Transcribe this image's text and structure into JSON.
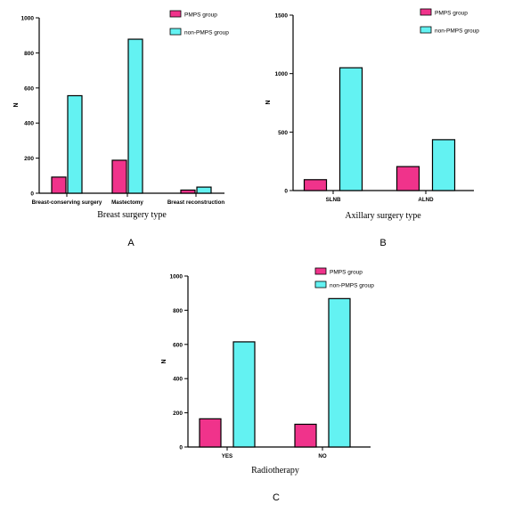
{
  "legend": {
    "pmps_label": "PMPS group",
    "non_pmps_label": "non-PMPS group"
  },
  "colors": {
    "pmps": "#F0338B",
    "non_pmps": "#63F2F2"
  },
  "panel_labels": [
    "A",
    "B",
    "C"
  ],
  "chart_data": [
    {
      "type": "bar",
      "panel": "A",
      "categories": [
        "Breast-conserving surgery",
        "Mastectomy",
        "Breast reconstruction"
      ],
      "series": [
        {
          "name": "PMPS group",
          "values": [
            92,
            188,
            18
          ]
        },
        {
          "name": "non-PMPS group",
          "values": [
            556,
            878,
            35
          ]
        }
      ],
      "xlabel": "Breast surgery type",
      "ylabel": "N",
      "ylim": [
        0,
        1000
      ],
      "yticks": [
        0,
        200,
        400,
        600,
        800,
        1000
      ],
      "grid": false,
      "legend_position": "top-right"
    },
    {
      "type": "bar",
      "panel": "B",
      "categories": [
        "SLNB",
        "ALND"
      ],
      "series": [
        {
          "name": "PMPS group",
          "values": [
            93,
            205
          ]
        },
        {
          "name": "non-PMPS group",
          "values": [
            1050,
            435
          ]
        }
      ],
      "xlabel": "Axillary surgery type",
      "ylabel": "N",
      "ylim": [
        0,
        1500
      ],
      "yticks": [
        0,
        500,
        1000,
        1500
      ],
      "grid": false,
      "legend_position": "top-right"
    },
    {
      "type": "bar",
      "panel": "C",
      "categories": [
        "YES",
        "NO"
      ],
      "series": [
        {
          "name": "PMPS group",
          "values": [
            165,
            133
          ]
        },
        {
          "name": "non-PMPS group",
          "values": [
            615,
            868
          ]
        }
      ],
      "xlabel": "Radiotherapy",
      "ylabel": "N",
      "ylim": [
        0,
        1000
      ],
      "yticks": [
        0,
        200,
        400,
        600,
        800,
        1000
      ],
      "grid": false,
      "legend_position": "top-right"
    }
  ]
}
